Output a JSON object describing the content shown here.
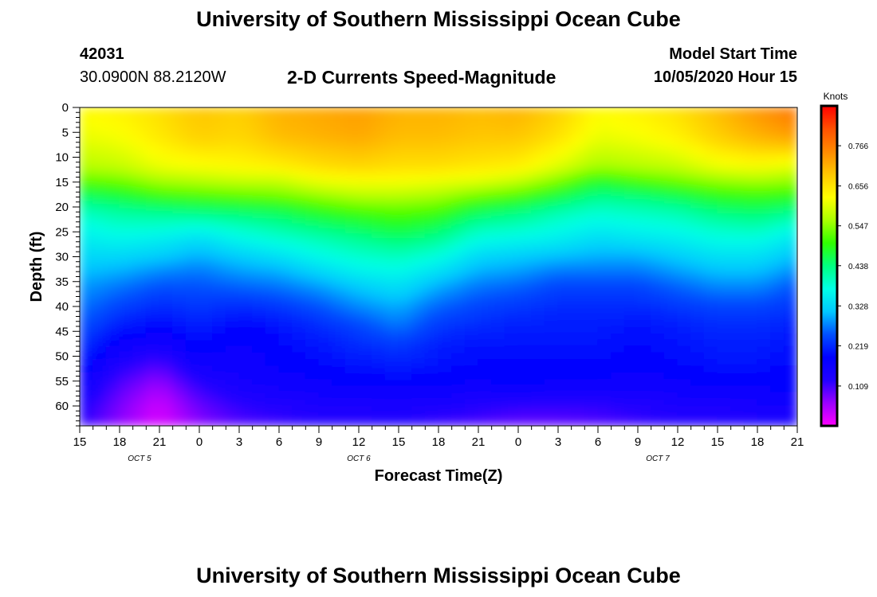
{
  "header": {
    "title": "University of Southern Mississippi Ocean Cube",
    "station_id": "42031",
    "coordinates": "30.0900N 88.2120W",
    "subtitle": "2-D Currents Speed-Magnitude",
    "model_start_label": "Model Start Time",
    "model_start_value": "10/05/2020 Hour 15"
  },
  "footer": {
    "title": "University of Southern Mississippi Ocean Cube"
  },
  "chart_data": {
    "type": "heatmap",
    "title": "2-D Currents Speed-Magnitude",
    "xlabel": "Forecast Time(Z)",
    "ylabel": "Depth (ft)",
    "x_hours": [
      0,
      3,
      6,
      9,
      12,
      15,
      18,
      21,
      24,
      27,
      30,
      33,
      36,
      39,
      42,
      45,
      48,
      51,
      54
    ],
    "x_tick_labels": [
      "15",
      "18",
      "21",
      "0",
      "3",
      "6",
      "9",
      "12",
      "15",
      "18",
      "21",
      "0",
      "3",
      "6",
      "9",
      "12",
      "15",
      "18",
      "21"
    ],
    "date_labels": [
      {
        "hour": 4.5,
        "text": "OCT 5"
      },
      {
        "hour": 21,
        "text": "OCT 6"
      },
      {
        "hour": 43.5,
        "text": "OCT 7"
      }
    ],
    "y_ticks": [
      0,
      5,
      10,
      15,
      20,
      25,
      30,
      35,
      40,
      45,
      50,
      55,
      60
    ],
    "ylim": [
      0,
      64
    ],
    "colorbar": {
      "label": "Knots",
      "ticks": [
        "0.766",
        "0.656",
        "0.547",
        "0.438",
        "0.328",
        "0.219",
        "0.109"
      ],
      "range": [
        0.0,
        0.875
      ],
      "colors": [
        "#ff00ff",
        "#9b00ff",
        "#2200ff",
        "#0000ff",
        "#0050ff",
        "#00c8ff",
        "#00ffe6",
        "#00ff80",
        "#30ff00",
        "#aaff00",
        "#ffff00",
        "#ffc800",
        "#ff8a00",
        "#ff5000",
        "#ff0000"
      ]
    },
    "depth_levels_ft": [
      0,
      6,
      12,
      15,
      18,
      21,
      24,
      27,
      30,
      33,
      36,
      40,
      44,
      48,
      52,
      56,
      60,
      64
    ],
    "speed_knots": [
      [
        0.63,
        0.64,
        0.66,
        0.69,
        0.68,
        0.71,
        0.72,
        0.73,
        0.71,
        0.71,
        0.7,
        0.71,
        0.68,
        0.63,
        0.64,
        0.66,
        0.7,
        0.74,
        0.78
      ],
      [
        0.61,
        0.62,
        0.65,
        0.68,
        0.67,
        0.7,
        0.71,
        0.72,
        0.7,
        0.7,
        0.69,
        0.69,
        0.66,
        0.61,
        0.62,
        0.64,
        0.68,
        0.71,
        0.73
      ],
      [
        0.57,
        0.58,
        0.61,
        0.62,
        0.63,
        0.64,
        0.66,
        0.67,
        0.66,
        0.66,
        0.65,
        0.64,
        0.6,
        0.56,
        0.57,
        0.58,
        0.61,
        0.62,
        0.6
      ],
      [
        0.52,
        0.53,
        0.56,
        0.57,
        0.58,
        0.58,
        0.61,
        0.62,
        0.62,
        0.61,
        0.6,
        0.58,
        0.54,
        0.48,
        0.51,
        0.53,
        0.55,
        0.56,
        0.55
      ],
      [
        0.45,
        0.47,
        0.5,
        0.51,
        0.52,
        0.53,
        0.55,
        0.57,
        0.57,
        0.56,
        0.53,
        0.51,
        0.47,
        0.43,
        0.44,
        0.46,
        0.49,
        0.5,
        0.49
      ],
      [
        0.4,
        0.42,
        0.43,
        0.44,
        0.45,
        0.46,
        0.49,
        0.51,
        0.52,
        0.51,
        0.46,
        0.44,
        0.41,
        0.39,
        0.4,
        0.41,
        0.44,
        0.45,
        0.43
      ],
      [
        0.37,
        0.39,
        0.39,
        0.38,
        0.4,
        0.42,
        0.44,
        0.46,
        0.48,
        0.46,
        0.41,
        0.4,
        0.38,
        0.36,
        0.37,
        0.38,
        0.4,
        0.41,
        0.38
      ],
      [
        0.35,
        0.36,
        0.35,
        0.33,
        0.36,
        0.38,
        0.4,
        0.42,
        0.44,
        0.42,
        0.37,
        0.36,
        0.35,
        0.33,
        0.34,
        0.35,
        0.37,
        0.37,
        0.34
      ],
      [
        0.33,
        0.33,
        0.32,
        0.3,
        0.32,
        0.34,
        0.37,
        0.39,
        0.4,
        0.38,
        0.33,
        0.32,
        0.31,
        0.3,
        0.3,
        0.32,
        0.34,
        0.34,
        0.31
      ],
      [
        0.31,
        0.3,
        0.28,
        0.27,
        0.29,
        0.3,
        0.33,
        0.36,
        0.37,
        0.34,
        0.3,
        0.29,
        0.27,
        0.27,
        0.27,
        0.29,
        0.31,
        0.31,
        0.28
      ],
      [
        0.29,
        0.27,
        0.25,
        0.25,
        0.26,
        0.27,
        0.29,
        0.32,
        0.34,
        0.3,
        0.27,
        0.26,
        0.24,
        0.24,
        0.24,
        0.26,
        0.28,
        0.28,
        0.25
      ],
      [
        0.27,
        0.24,
        0.22,
        0.23,
        0.22,
        0.23,
        0.25,
        0.28,
        0.3,
        0.26,
        0.24,
        0.23,
        0.22,
        0.22,
        0.22,
        0.23,
        0.24,
        0.24,
        0.23
      ],
      [
        0.25,
        0.21,
        0.19,
        0.21,
        0.19,
        0.2,
        0.22,
        0.24,
        0.27,
        0.23,
        0.22,
        0.21,
        0.21,
        0.21,
        0.2,
        0.21,
        0.22,
        0.22,
        0.21
      ],
      [
        0.23,
        0.17,
        0.15,
        0.19,
        0.17,
        0.19,
        0.2,
        0.22,
        0.23,
        0.21,
        0.2,
        0.2,
        0.2,
        0.2,
        0.19,
        0.2,
        0.21,
        0.21,
        0.2
      ],
      [
        0.2,
        0.13,
        0.1,
        0.16,
        0.16,
        0.18,
        0.19,
        0.2,
        0.21,
        0.2,
        0.19,
        0.19,
        0.19,
        0.19,
        0.18,
        0.19,
        0.2,
        0.2,
        0.19
      ],
      [
        0.17,
        0.1,
        0.06,
        0.12,
        0.15,
        0.16,
        0.17,
        0.18,
        0.18,
        0.18,
        0.17,
        0.18,
        0.17,
        0.17,
        0.16,
        0.17,
        0.18,
        0.18,
        0.18
      ],
      [
        0.14,
        0.08,
        0.03,
        0.09,
        0.12,
        0.13,
        0.14,
        0.14,
        0.15,
        0.14,
        0.13,
        0.12,
        0.12,
        0.12,
        0.13,
        0.14,
        0.14,
        0.15,
        0.16
      ],
      [
        0.12,
        0.07,
        0.02,
        0.07,
        0.1,
        0.11,
        0.12,
        0.12,
        0.12,
        0.11,
        0.1,
        0.09,
        0.09,
        0.1,
        0.11,
        0.12,
        0.12,
        0.13,
        0.14
      ]
    ]
  }
}
